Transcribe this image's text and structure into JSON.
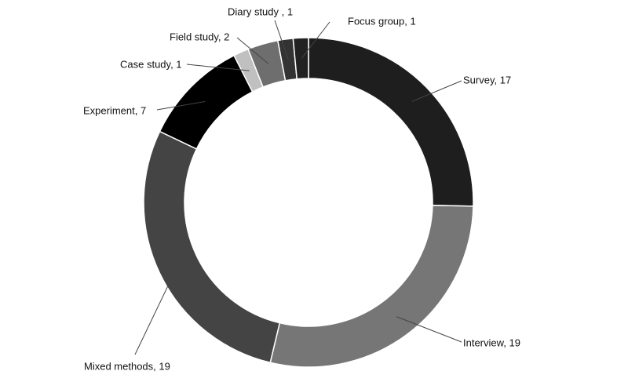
{
  "chart_data": {
    "type": "donut",
    "values": [
      17,
      19,
      19,
      7,
      1,
      2,
      1,
      1
    ],
    "value_labels": [
      "Survey, 17",
      "Interview, 19",
      "Mixed methods, 19",
      "Experiment, 7",
      "Case study, 1",
      "Field study, 2",
      "Diary study , 1",
      "Focus group, 1"
    ],
    "colors": [
      "#1e1e1e",
      "#767676",
      "#444444",
      "#000000",
      "#c0c0c0",
      "#6e6e6e",
      "#333333",
      "#222222"
    ]
  }
}
